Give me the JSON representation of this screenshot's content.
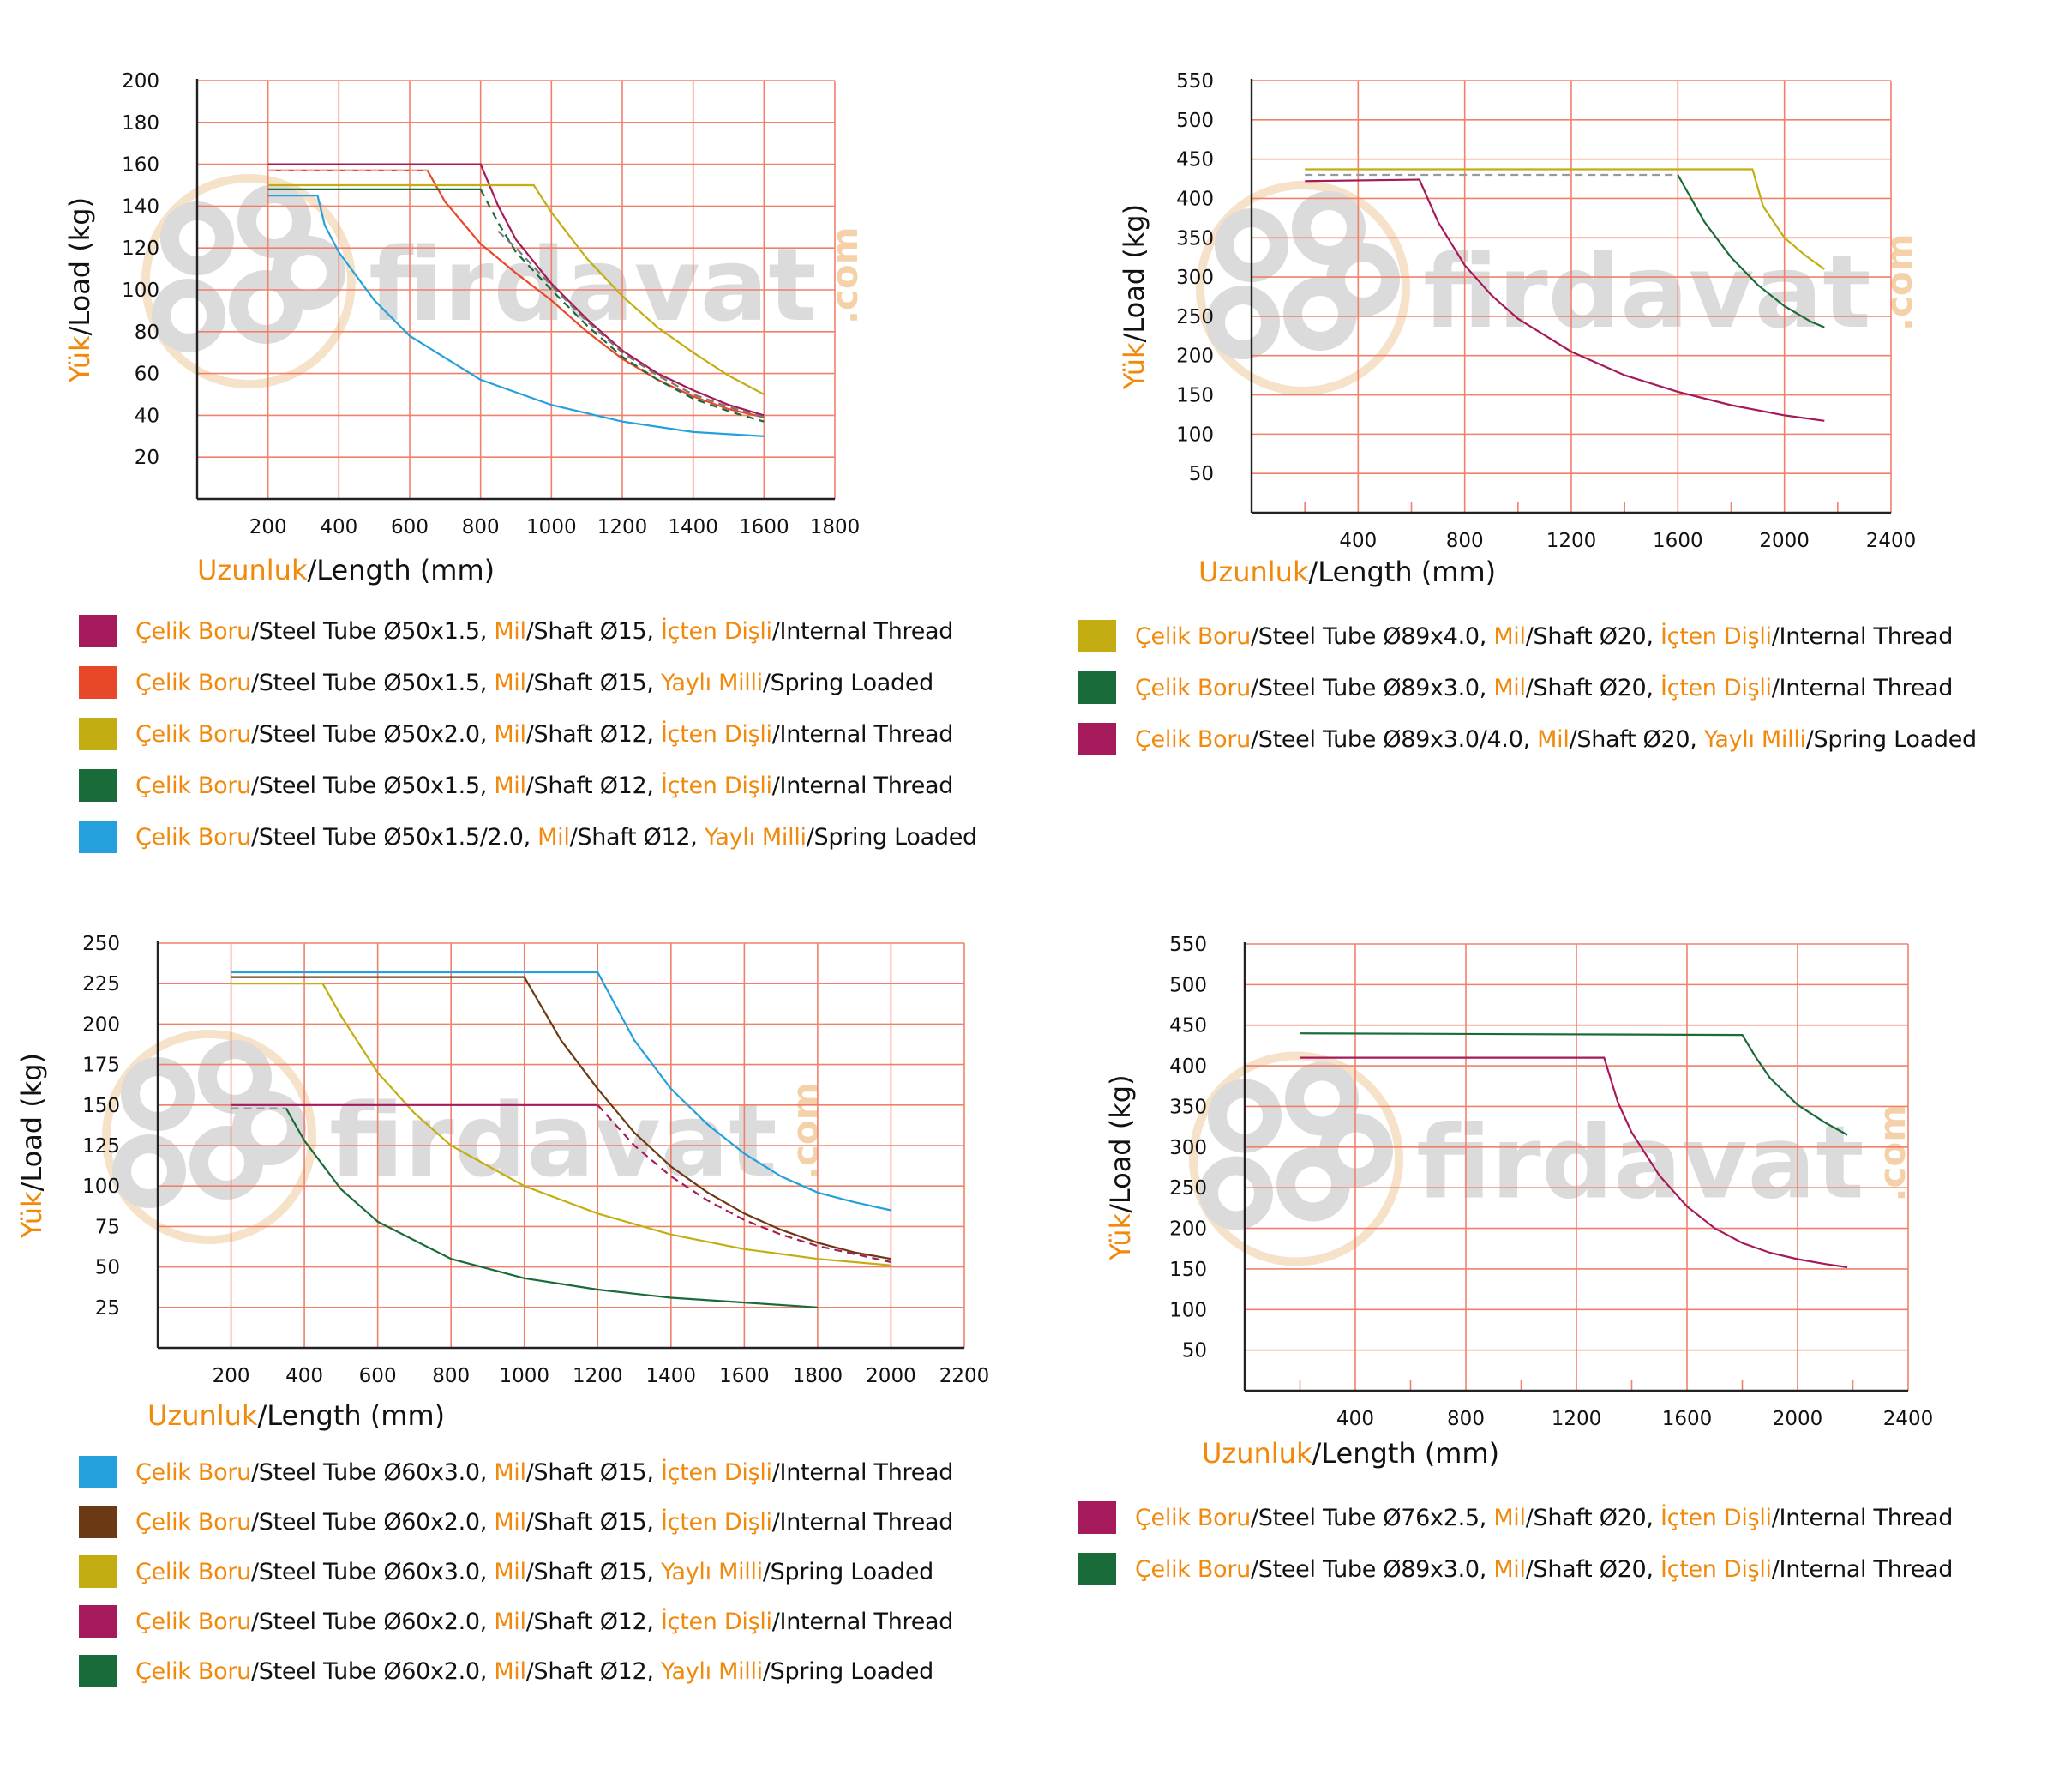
{
  "legend_labels": {
    "celik_boru": "Çelik Boru",
    "steel_tube": "/Steel Tube",
    "mil": "Mil",
    "shaft": "/Shaft",
    "icten_disli": "İçten Dişli",
    "internal_thread": "/Internal Thread",
    "yayli_milli": "Yaylı Milli",
    "spring_loaded": "/Spring Loaded"
  },
  "watermark": {
    "brand": "firdavat",
    "suffix": ".com"
  },
  "colors": {
    "grid": "#f0806a",
    "axis": "#222222",
    "accent_orange": "#f0890c",
    "watermark": "#d5d5d5"
  },
  "chart_data": [
    {
      "type": "line",
      "ylabel_tr": "Yük",
      "ylabel_en": "/Load (kg)",
      "xlabel_tr": "Uzunluk",
      "xlabel_en": "/Length (mm)",
      "xlim": [
        0,
        1800
      ],
      "ylim": [
        0,
        200
      ],
      "grid_x": [
        200,
        400,
        600,
        800,
        1000,
        1200,
        1400,
        1600,
        1800
      ],
      "grid_y": [
        20,
        40,
        60,
        80,
        100,
        120,
        140,
        160,
        180,
        200
      ],
      "x_ticks": [
        "200",
        "400",
        "600",
        "800",
        "1000",
        "1200",
        "1400",
        "1600",
        "1800"
      ],
      "x_tick_values": [
        200,
        400,
        600,
        800,
        1000,
        1200,
        1400,
        1600,
        1800
      ],
      "y_ticks": [
        "20",
        "40",
        "60",
        "80",
        "100",
        "120",
        "140",
        "160",
        "180",
        "200"
      ],
      "y_tick_values": [
        20,
        40,
        60,
        80,
        100,
        120,
        140,
        160,
        180,
        200
      ],
      "series": [
        {
          "tube": "Ø50x1.5",
          "shaft": "Ø15",
          "type": "internal",
          "color": "#a51a5a",
          "dashed": false,
          "x": [
            200,
            800,
            850,
            900,
            1000,
            1100,
            1200,
            1300,
            1400,
            1500,
            1600
          ],
          "y": [
            160,
            160,
            140,
            124,
            103,
            86,
            71,
            60,
            52,
            45,
            40
          ]
        },
        {
          "tube": "Ø50x1.5",
          "shaft": "Ø15",
          "type": "spring",
          "color": "#e8472a",
          "dashed": false,
          "x": [
            200,
            650,
            700,
            800,
            900,
            1000,
            1100,
            1200,
            1300,
            1400,
            1500,
            1600
          ],
          "y": [
            157,
            157,
            142,
            122,
            108,
            95,
            80,
            67,
            57,
            49,
            43,
            39
          ]
        },
        {
          "tube": "Ø50x2.0",
          "shaft": "Ø12",
          "type": "internal",
          "color": "#c3ad12",
          "dashed": false,
          "x": [
            200,
            950,
            1000,
            1100,
            1200,
            1300,
            1400,
            1500,
            1600
          ],
          "y": [
            150,
            150,
            137,
            115,
            97,
            82,
            70,
            59,
            50
          ]
        },
        {
          "tube": "Ø50x1.5",
          "shaft": "Ø12",
          "type": "internal",
          "color": "#1a6b3a",
          "dashed": false,
          "x": [
            200,
            800
          ],
          "y": [
            148,
            148
          ]
        },
        {
          "tube": "Ø50x1.5/2.0",
          "shaft": "Ø12",
          "type": "spring",
          "color": "#24a0dc",
          "dashed": false,
          "x": [
            200,
            340,
            360,
            400,
            500,
            600,
            800,
            1000,
            1200,
            1400,
            1600
          ],
          "y": [
            145,
            145,
            131,
            118,
            95,
            78,
            57,
            45,
            37,
            32,
            30
          ]
        },
        {
          "color": "#f0a0a0",
          "dashed": true,
          "x": [
            200,
            650
          ],
          "y": [
            157,
            157
          ]
        },
        {
          "color": "#1a6b3a",
          "dashed": true,
          "x": [
            800,
            850,
            900,
            1000,
            1100,
            1200,
            1300,
            1400,
            1500,
            1600
          ],
          "y": [
            148,
            132,
            118,
            100,
            83,
            68,
            57,
            48,
            42,
            37
          ]
        },
        {
          "color": "#777777",
          "dashed": true,
          "x": [
            850,
            900,
            1000,
            1100,
            1200,
            1300,
            1400,
            1500,
            1600
          ],
          "y": [
            128,
            120,
            102,
            85,
            70,
            59,
            50,
            44,
            39
          ]
        }
      ],
      "legend": [
        {
          "color": "#a51a5a",
          "tube": "Ø50x1.5",
          "shaft": "Ø15",
          "type": "internal"
        },
        {
          "color": "#e8472a",
          "tube": "Ø50x1.5",
          "shaft": "Ø15",
          "type": "spring"
        },
        {
          "color": "#c3ad12",
          "tube": "Ø50x2.0",
          "shaft": "Ø12",
          "type": "internal"
        },
        {
          "color": "#1a6b3a",
          "tube": "Ø50x1.5",
          "shaft": "Ø12",
          "type": "internal"
        },
        {
          "color": "#24a0dc",
          "tube": "Ø50x1.5/2.0",
          "shaft": "Ø12",
          "type": "spring"
        }
      ]
    },
    {
      "type": "line",
      "ylabel_tr": "Yük",
      "ylabel_en": "/Load (kg)",
      "xlabel_tr": "Uzunluk",
      "xlabel_en": "/Length (mm)",
      "xlim": [
        0,
        2400
      ],
      "ylim": [
        0,
        550
      ],
      "grid_x": [
        400,
        800,
        1200,
        1600,
        2000,
        2400
      ],
      "grid_y": [
        50,
        100,
        150,
        200,
        250,
        300,
        350,
        400,
        450,
        500,
        550
      ],
      "minor_x": [
        200,
        600,
        1000,
        1400,
        1800,
        2200
      ],
      "x_ticks": [
        "400",
        "800",
        "1200",
        "1600",
        "2000",
        "2400"
      ],
      "x_tick_values": [
        400,
        800,
        1200,
        1600,
        2000,
        2400
      ],
      "y_ticks": [
        "50",
        "100",
        "150",
        "200",
        "250",
        "300",
        "350",
        "400",
        "450",
        "500",
        "550"
      ],
      "y_tick_values": [
        50,
        100,
        150,
        200,
        250,
        300,
        350,
        400,
        450,
        500,
        550
      ],
      "series": [
        {
          "tube": "Ø89x4.0",
          "shaft": "Ø20",
          "type": "internal",
          "color": "#c3ad12",
          "dashed": false,
          "x": [
            200,
            1880,
            1920,
            2000,
            2080,
            2150
          ],
          "y": [
            437,
            437,
            390,
            350,
            327,
            310
          ]
        },
        {
          "tube": "Ø89x3.0",
          "shaft": "Ø20",
          "type": "internal",
          "color": "#1a6b3a",
          "dashed": false,
          "x": [
            1600,
            1700,
            1800,
            1900,
            2000,
            2100,
            2150
          ],
          "y": [
            430,
            370,
            325,
            290,
            263,
            243,
            236
          ]
        },
        {
          "tube": "Ø89x3.0/4.0",
          "shaft": "Ø20",
          "type": "spring",
          "color": "#a51a5a",
          "dashed": false,
          "x": [
            200,
            630,
            700,
            800,
            900,
            1000,
            1200,
            1400,
            1600,
            1800,
            2000,
            2150
          ],
          "y": [
            422,
            424,
            370,
            315,
            277,
            247,
            205,
            175,
            154,
            137,
            124,
            117
          ]
        },
        {
          "color": "#999999",
          "dashed": true,
          "x": [
            200,
            1600
          ],
          "y": [
            430,
            430
          ]
        }
      ],
      "legend": [
        {
          "color": "#c3ad12",
          "tube": "Ø89x4.0",
          "shaft": "Ø20",
          "type": "internal"
        },
        {
          "color": "#1a6b3a",
          "tube": "Ø89x3.0",
          "shaft": "Ø20",
          "type": "internal"
        },
        {
          "color": "#a51a5a",
          "tube": "Ø89x3.0/4.0",
          "shaft": "Ø20",
          "type": "spring"
        }
      ]
    },
    {
      "type": "line",
      "ylabel_tr": "Yük",
      "ylabel_en": "/Load (kg)",
      "xlabel_tr": "Uzunluk",
      "xlabel_en": "/Length (mm)",
      "xlim": [
        0,
        2200
      ],
      "ylim": [
        0,
        250
      ],
      "grid_x": [
        200,
        400,
        600,
        800,
        1000,
        1200,
        1400,
        1600,
        1800,
        2000,
        2200
      ],
      "grid_y": [
        25,
        50,
        75,
        100,
        125,
        150,
        175,
        200,
        225,
        250
      ],
      "x_ticks": [
        "200",
        "400",
        "600",
        "800",
        "1000",
        "1200",
        "1400",
        "1600",
        "1800",
        "2000",
        "2200"
      ],
      "x_tick_values": [
        200,
        400,
        600,
        800,
        1000,
        1200,
        1400,
        1600,
        1800,
        2000,
        2200
      ],
      "y_ticks": [
        "25",
        "50",
        "75",
        "100",
        "125",
        "150",
        "175",
        "200",
        "225",
        "250"
      ],
      "y_tick_values": [
        25,
        50,
        75,
        100,
        125,
        150,
        175,
        200,
        225,
        250
      ],
      "series": [
        {
          "tube": "Ø60x3.0",
          "shaft": "Ø15",
          "type": "internal",
          "color": "#24a0dc",
          "dashed": false,
          "x": [
            200,
            1200,
            1300,
            1400,
            1500,
            1600,
            1700,
            1800,
            1900,
            2000
          ],
          "y": [
            232,
            232,
            190,
            160,
            138,
            120,
            106,
            96,
            90,
            85
          ]
        },
        {
          "tube": "Ø60x2.0",
          "shaft": "Ø15",
          "type": "internal",
          "color": "#6b3a15",
          "dashed": false,
          "x": [
            200,
            1000,
            1100,
            1200,
            1300,
            1400,
            1500,
            1600,
            1700,
            1800,
            1900,
            2000
          ],
          "y": [
            229,
            229,
            190,
            160,
            133,
            112,
            96,
            83,
            73,
            65,
            59,
            55
          ]
        },
        {
          "tube": "Ø60x3.0",
          "shaft": "Ø15",
          "type": "spring",
          "color": "#c3ad12",
          "dashed": false,
          "x": [
            200,
            450,
            500,
            600,
            700,
            800,
            1000,
            1200,
            1400,
            1600,
            1800,
            2000
          ],
          "y": [
            225,
            225,
            205,
            170,
            145,
            125,
            100,
            83,
            70,
            61,
            55,
            51
          ]
        },
        {
          "tube": "Ø60x2.0",
          "shaft": "Ø12",
          "type": "internal",
          "color": "#a51a5a",
          "dashed": false,
          "x": [
            200,
            1200
          ],
          "y": [
            150,
            150
          ]
        },
        {
          "tube": "Ø60x2.0",
          "shaft": "Ø12",
          "type": "spring",
          "color": "#1a6b3a",
          "dashed": false,
          "x": [
            350,
            400,
            500,
            600,
            800,
            1000,
            1200,
            1400,
            1600,
            1800
          ],
          "y": [
            148,
            128,
            98,
            78,
            55,
            43,
            36,
            31,
            28,
            25
          ]
        },
        {
          "color": "#999999",
          "dashed": true,
          "x": [
            200,
            350
          ],
          "y": [
            148,
            148
          ]
        },
        {
          "color": "#a51a5a",
          "dashed": true,
          "x": [
            1200,
            1300,
            1400,
            1500,
            1600,
            1700,
            1800,
            1900,
            2000
          ],
          "y": [
            150,
            125,
            106,
            91,
            79,
            70,
            63,
            58,
            53
          ]
        }
      ],
      "legend": [
        {
          "color": "#24a0dc",
          "tube": "Ø60x3.0",
          "shaft": "Ø15",
          "type": "internal"
        },
        {
          "color": "#6b3a15",
          "tube": "Ø60x2.0",
          "shaft": "Ø15",
          "type": "internal"
        },
        {
          "color": "#c3ad12",
          "tube": "Ø60x3.0",
          "shaft": "Ø15",
          "type": "spring"
        },
        {
          "color": "#a51a5a",
          "tube": "Ø60x2.0",
          "shaft": "Ø12",
          "type": "internal"
        },
        {
          "color": "#1a6b3a",
          "tube": "Ø60x2.0",
          "shaft": "Ø12",
          "type": "spring"
        }
      ]
    },
    {
      "type": "line",
      "ylabel_tr": "Yük",
      "ylabel_en": "/Load (kg)",
      "xlabel_tr": "Uzunluk",
      "xlabel_en": "/Length (mm)",
      "xlim": [
        0,
        2400
      ],
      "ylim": [
        0,
        550
      ],
      "grid_x": [
        400,
        800,
        1200,
        1600,
        2000,
        2400
      ],
      "grid_y": [
        50,
        100,
        150,
        200,
        250,
        300,
        350,
        400,
        450,
        500,
        550
      ],
      "minor_x": [
        200,
        600,
        1000,
        1400,
        1800,
        2200
      ],
      "x_ticks": [
        "400",
        "800",
        "1200",
        "1600",
        "2000",
        "2400"
      ],
      "x_tick_values": [
        400,
        800,
        1200,
        1600,
        2000,
        2400
      ],
      "y_ticks": [
        "50",
        "100",
        "150",
        "200",
        "250",
        "300",
        "350",
        "400",
        "450",
        "500",
        "550"
      ],
      "y_tick_values": [
        50,
        100,
        150,
        200,
        250,
        300,
        350,
        400,
        450,
        500,
        550
      ],
      "series": [
        {
          "tube": "Ø76x2.5",
          "shaft": "Ø20",
          "type": "internal",
          "color": "#a51a5a",
          "dashed": false,
          "x": [
            200,
            1300,
            1350,
            1400,
            1500,
            1600,
            1700,
            1800,
            1900,
            2000,
            2100,
            2180
          ],
          "y": [
            410,
            410,
            355,
            318,
            265,
            227,
            200,
            182,
            170,
            162,
            156,
            152
          ]
        },
        {
          "tube": "Ø89x3.0",
          "shaft": "Ø20",
          "type": "internal",
          "color": "#1a6b3a",
          "dashed": false,
          "x": [
            200,
            1800,
            1850,
            1900,
            2000,
            2100,
            2180
          ],
          "y": [
            440,
            438,
            410,
            385,
            352,
            330,
            315
          ]
        }
      ],
      "legend": [
        {
          "color": "#a51a5a",
          "tube": "Ø76x2.5",
          "shaft": "Ø20",
          "type": "internal"
        },
        {
          "color": "#1a6b3a",
          "tube": "Ø89x3.0",
          "shaft": "Ø20",
          "type": "internal"
        }
      ]
    }
  ]
}
